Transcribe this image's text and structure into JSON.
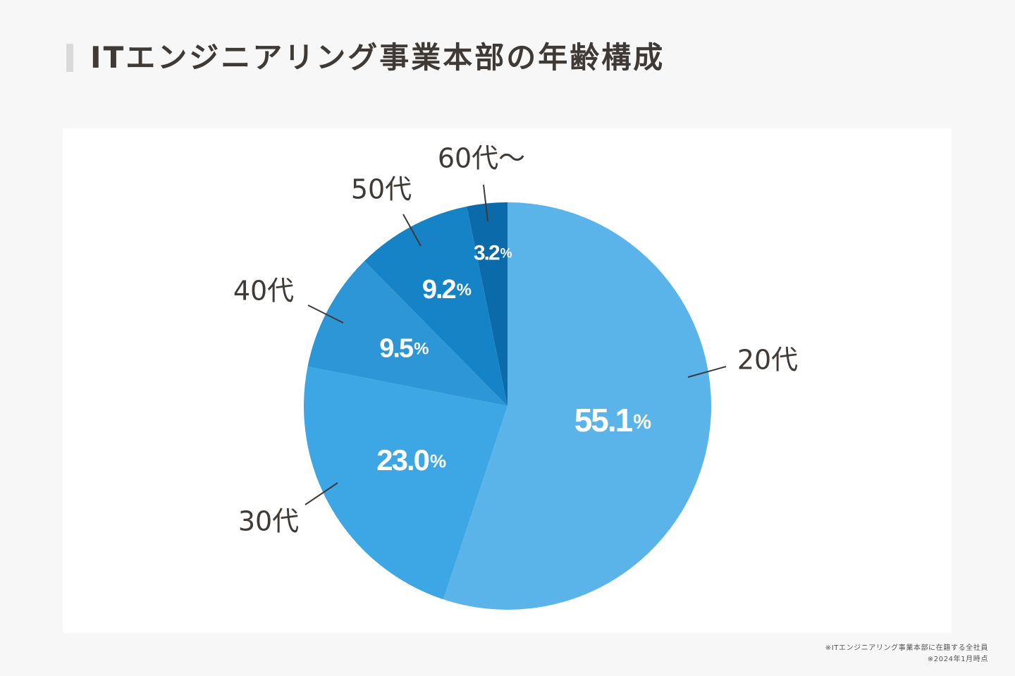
{
  "title": "ITエンジニアリング事業本部の年齢構成",
  "footnotes": {
    "line1": "※ITエンジニアリング事業本部に在籍する全社員",
    "line2": "※2024年1月時点"
  },
  "colors": {
    "background": "#f7f7f7",
    "card": "#ffffff",
    "text": "#3f3a36",
    "leader": "#3f3a36"
  },
  "chart_data": {
    "type": "pie",
    "title": "",
    "unit": "%",
    "start": "12 o'clock",
    "direction": "clockwise",
    "categories": [
      "20代",
      "30代",
      "40代",
      "50代",
      "60代〜"
    ],
    "values": [
      55.1,
      23.0,
      9.5,
      9.2,
      3.2
    ],
    "value_labels": [
      "55.1",
      "23.0",
      "9.5",
      "9.2",
      "3.2"
    ],
    "colors": [
      "#5ab4ea",
      "#3ca7e4",
      "#2d96d6",
      "#1683c6",
      "#0a6aaa"
    ]
  }
}
